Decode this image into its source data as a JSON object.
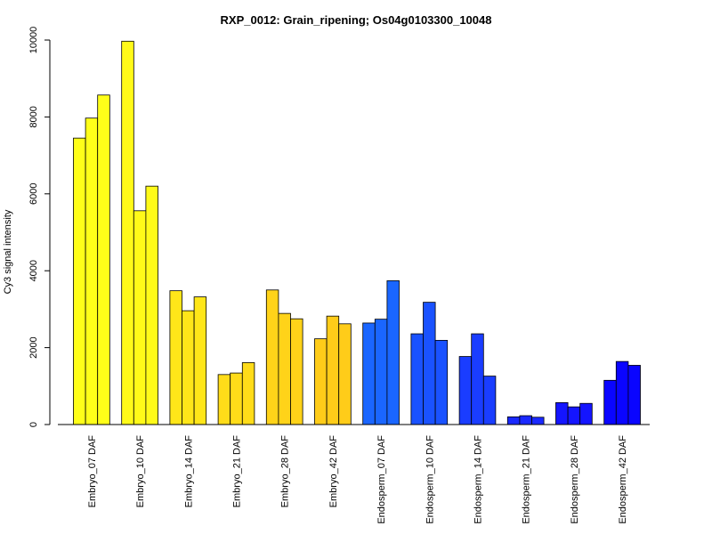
{
  "chart_data": {
    "type": "bar",
    "title": "RXP_0012: Grain_ripening; Os04g0103300_10048",
    "xlabel": "",
    "ylabel": "Cy3 signal intensity",
    "ylim": [
      0,
      10000
    ],
    "yticks": [
      0,
      2000,
      4000,
      6000,
      8000,
      10000
    ],
    "categories": [
      "Embryo_07 DAF",
      "Embryo_10 DAF",
      "Embryo_14 DAF",
      "Embryo_21 DAF",
      "Embryo_28 DAF",
      "Embryo_42 DAF",
      "Endosperm_07 DAF",
      "Endosperm_10 DAF",
      "Endosperm_14 DAF",
      "Endosperm_21 DAF",
      "Endosperm_28 DAF",
      "Endosperm_42 DAF"
    ],
    "replicates": [
      [
        7450,
        7970,
        8570
      ],
      [
        9970,
        5560,
        6200
      ],
      [
        3480,
        2960,
        3320
      ],
      [
        1300,
        1340,
        1610
      ],
      [
        3500,
        2890,
        2750
      ],
      [
        2230,
        2820,
        2620
      ],
      [
        2640,
        2740,
        3740
      ],
      [
        2360,
        3180,
        2190
      ],
      [
        1770,
        2360,
        1260
      ],
      [
        200,
        230,
        190
      ],
      [
        570,
        460,
        550
      ],
      [
        1150,
        1640,
        1540
      ]
    ],
    "colors": [
      "#FFFF19",
      "#FFFA19",
      "#FFE619",
      "#FFDC19",
      "#FFD319",
      "#FFCC19",
      "#1A66FF",
      "#1A52FF",
      "#1A3DFF",
      "#1A29FF",
      "#1415FF",
      "#0A05FF"
    ],
    "grid": false,
    "legend": "none"
  }
}
